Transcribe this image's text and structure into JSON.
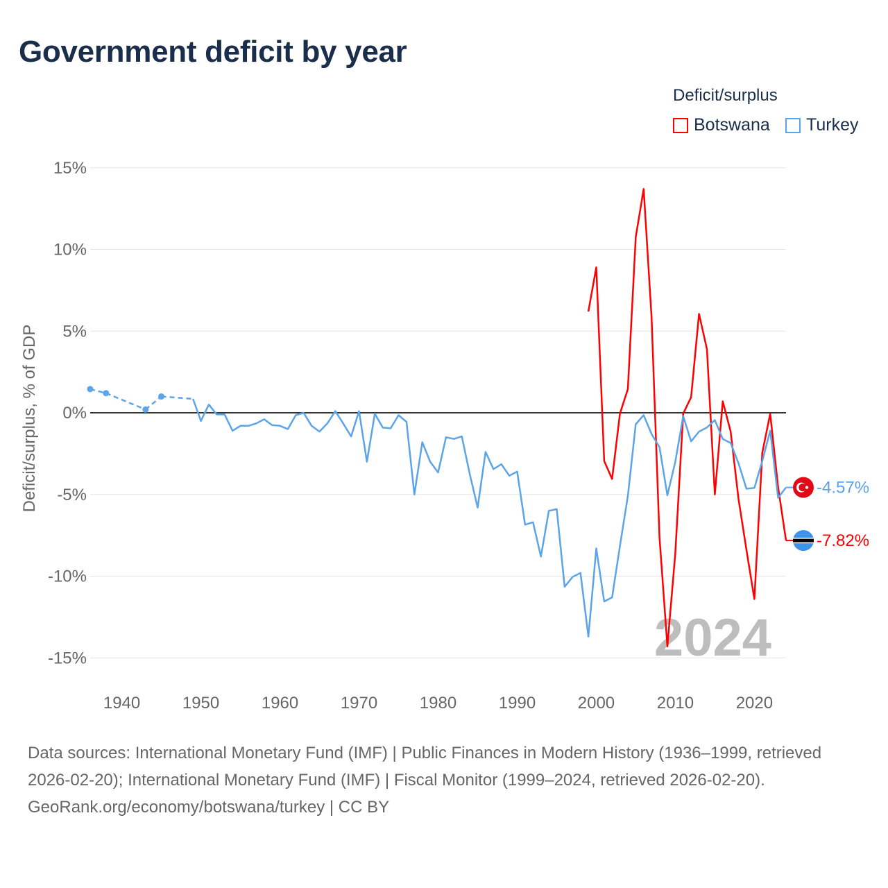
{
  "title": "Government deficit by year",
  "legend": {
    "title": "Deficit/surplus",
    "items": [
      {
        "name": "Botswana",
        "color": "#ff0000"
      },
      {
        "name": "Turkey",
        "color": "#5ba4ea"
      }
    ]
  },
  "chart_data": {
    "type": "line",
    "title": "Government deficit by year",
    "xlabel": "",
    "ylabel": "Deficit/surplus, % of GDP",
    "xlim": [
      1936,
      2024
    ],
    "ylim": [
      -15,
      15
    ],
    "x_ticks": [
      1940,
      1950,
      1960,
      1970,
      1980,
      1990,
      2000,
      2010,
      2020
    ],
    "y_ticks": [
      15,
      10,
      5,
      0,
      -5,
      -10,
      -15
    ],
    "y_tick_labels": [
      "15%",
      "10%",
      "5%",
      "0%",
      "-5%",
      "-10%",
      "-15%"
    ],
    "x_tick_labels": [
      "1940",
      "1950",
      "1960",
      "1970",
      "1980",
      "1990",
      "2000",
      "2010",
      "2020"
    ],
    "grid": "horizontal",
    "legend_position": "top-right",
    "year_watermark": "2024",
    "series": [
      {
        "name": "Botswana",
        "color": "#ff0000",
        "end_label": "-7.82%",
        "flag": "botswana",
        "x": [
          1999,
          2000,
          2001,
          2002,
          2003,
          2004,
          2005,
          2006,
          2007,
          2008,
          2009,
          2010,
          2011,
          2012,
          2013,
          2014,
          2015,
          2016,
          2017,
          2018,
          2019,
          2020,
          2021,
          2022,
          2023,
          2024
        ],
        "y": [
          6.2,
          8.9,
          -2.95,
          -4.05,
          -0.05,
          1.45,
          10.75,
          13.7,
          5.85,
          -7.6,
          -14.3,
          -8.6,
          -0.05,
          0.95,
          6.05,
          3.9,
          -5.0,
          0.7,
          -1.15,
          -5.3,
          -8.4,
          -11.4,
          -2.45,
          -0.05,
          -4.55,
          -7.82
        ]
      },
      {
        "name": "Turkey",
        "color": "#5ba4ea",
        "end_label": "-4.57%",
        "flag": "turkey",
        "x": [
          1936,
          1938,
          1943,
          1945,
          1949,
          1950,
          1951,
          1952,
          1953,
          1954,
          1955,
          1956,
          1957,
          1958,
          1959,
          1960,
          1961,
          1962,
          1963,
          1964,
          1965,
          1966,
          1967,
          1968,
          1969,
          1970,
          1971,
          1972,
          1973,
          1974,
          1975,
          1976,
          1977,
          1978,
          1979,
          1980,
          1981,
          1982,
          1983,
          1984,
          1985,
          1986,
          1987,
          1988,
          1989,
          1990,
          1991,
          1992,
          1993,
          1994,
          1995,
          1996,
          1997,
          1998,
          1999,
          2000,
          2001,
          2002,
          2003,
          2004,
          2005,
          2006,
          2007,
          2008,
          2009,
          2010,
          2011,
          2012,
          2013,
          2014,
          2015,
          2016,
          2017,
          2018,
          2019,
          2020,
          2021,
          2022,
          2023,
          2024
        ],
        "y": [
          1.45,
          1.2,
          0.2,
          1.0,
          0.85,
          -0.5,
          0.5,
          -0.1,
          -0.1,
          -1.1,
          -0.8,
          -0.8,
          -0.65,
          -0.4,
          -0.75,
          -0.8,
          -1.0,
          -0.15,
          0.0,
          -0.8,
          -1.15,
          -0.65,
          0.1,
          -0.65,
          -1.45,
          0.1,
          -3.0,
          -0.05,
          -0.9,
          -0.95,
          -0.15,
          -0.55,
          -5.0,
          -1.8,
          -3.0,
          -3.65,
          -1.5,
          -1.6,
          -1.45,
          -3.75,
          -5.8,
          -2.4,
          -3.45,
          -3.15,
          -3.85,
          -3.6,
          -6.85,
          -6.7,
          -8.8,
          -6.0,
          -5.9,
          -10.65,
          -10.05,
          -9.8,
          -13.7,
          -8.3,
          -11.55,
          -11.3,
          -8.15,
          -5.1,
          -0.7,
          -0.15,
          -1.3,
          -2.1,
          -5.05,
          -3.0,
          -0.2,
          -1.75,
          -1.15,
          -0.9,
          -0.45,
          -1.6,
          -1.85,
          -3.1,
          -4.65,
          -4.6,
          -2.95,
          -1.1,
          -5.2,
          -4.57
        ]
      }
    ]
  },
  "footer": {
    "sources": "Data sources: International Monetary Fund (IMF) | Public Finances in Modern History (1936–1999, retrieved 2026-02-20); International Monetary Fund (IMF) | Fiscal Monitor (1999–2024, retrieved 2026-02-20).",
    "credit": "GeoRank.org/economy/botswana/turkey | CC BY"
  }
}
